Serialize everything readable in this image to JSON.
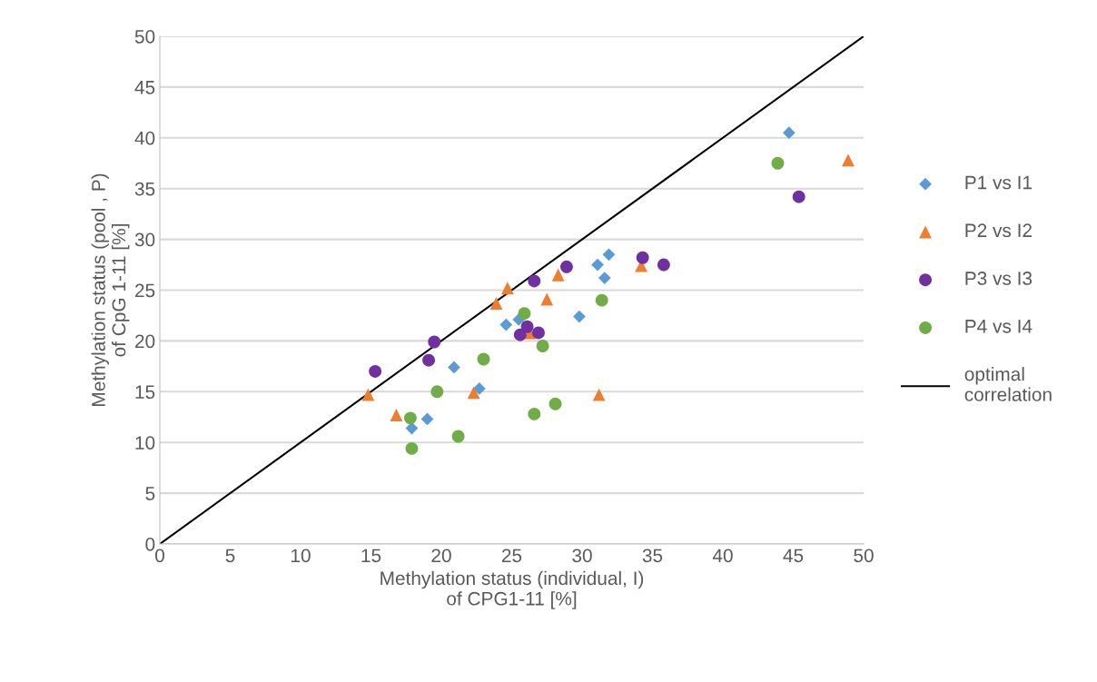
{
  "chart_data": {
    "type": "scatter",
    "xlabel": "Methylation status (individual, I)\nof CPG1-11 [%]",
    "ylabel": "Methylation status (pool , P)\nof CpG 1-11 [%]",
    "xlim": [
      0,
      50
    ],
    "ylim": [
      0,
      50
    ],
    "xticks": [
      0,
      5,
      10,
      15,
      20,
      25,
      30,
      35,
      40,
      45,
      50
    ],
    "yticks": [
      0,
      5,
      10,
      15,
      20,
      25,
      30,
      35,
      40,
      45,
      50
    ],
    "grid": "y",
    "legend": "right",
    "series": [
      {
        "name": "P1 vs I1",
        "color": "#5b9bd5",
        "marker": "diamond",
        "x": [
          17.9,
          19.0,
          20.9,
          22.7,
          24.6,
          25.5,
          29.8,
          31.1,
          31.6,
          31.9,
          44.7
        ],
        "values": [
          11.4,
          12.3,
          17.4,
          15.3,
          21.6,
          22.1,
          22.4,
          27.5,
          26.2,
          28.5,
          40.5
        ]
      },
      {
        "name": "P2 vs I2",
        "color": "#ed7d31",
        "marker": "triangle",
        "x": [
          14.8,
          16.8,
          22.3,
          23.9,
          24.7,
          26.3,
          27.5,
          28.3,
          31.2,
          34.2,
          48.9
        ],
        "values": [
          14.7,
          12.7,
          14.9,
          23.7,
          25.2,
          20.8,
          24.1,
          26.5,
          14.7,
          27.4,
          37.8
        ]
      },
      {
        "name": "P3 vs I3",
        "color": "#7030a0",
        "marker": "circle",
        "x": [
          15.3,
          19.5,
          19.1,
          25.6,
          26.1,
          26.9,
          26.6,
          28.9,
          34.3,
          35.8,
          45.4
        ],
        "values": [
          17.0,
          19.9,
          18.1,
          20.6,
          21.4,
          20.8,
          25.9,
          27.3,
          28.2,
          27.5,
          34.2
        ]
      },
      {
        "name": "P4 vs I4",
        "color": "#70ad47",
        "marker": "circle",
        "x": [
          17.9,
          17.8,
          19.7,
          21.2,
          23.0,
          25.9,
          27.2,
          26.6,
          28.1,
          31.4,
          43.9
        ],
        "values": [
          9.4,
          12.4,
          15.0,
          10.6,
          18.2,
          22.7,
          19.5,
          12.8,
          13.8,
          24.0,
          37.5
        ]
      },
      {
        "name": "optimal\ncorrelation",
        "type": "line",
        "color": "#000000",
        "marker": "none",
        "line_style": "solid",
        "x": [
          0,
          50
        ],
        "values": [
          0,
          50
        ]
      }
    ]
  }
}
